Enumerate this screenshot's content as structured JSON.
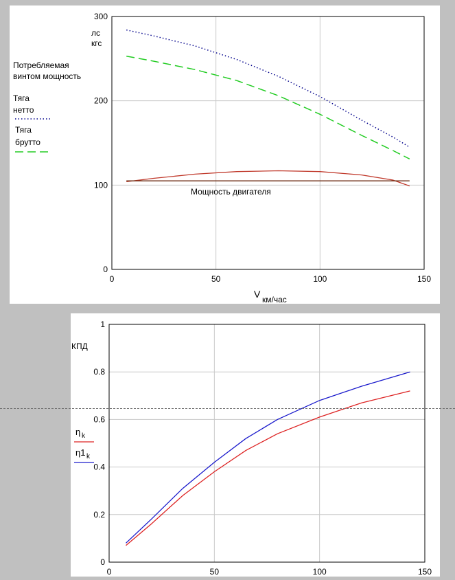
{
  "chart_data": [
    {
      "type": "line",
      "title": "",
      "xlabel": "V",
      "xlabel_sub": "км/час",
      "ylabel_lines": [
        "лс",
        "кгс"
      ],
      "xlim": [
        0,
        150
      ],
      "ylim": [
        0,
        300
      ],
      "xticks": [
        0,
        50,
        100,
        150
      ],
      "yticks": [
        0,
        100,
        200,
        300
      ],
      "grid": true,
      "annotations": [
        "Мощность двигателя"
      ],
      "series": [
        {
          "name": "Потребляемая винтом мощность",
          "legend_lines": [
            "Потребляемая",
            "винтом мощность"
          ],
          "style": "solid",
          "color": "#c0392b",
          "x": [
            7,
            20,
            40,
            60,
            80,
            100,
            120,
            135,
            143
          ],
          "y": [
            104,
            108,
            113,
            116,
            117,
            116,
            112,
            106,
            99
          ]
        },
        {
          "name": "Тяга нетто",
          "legend_lines": [
            "Тяга",
            "нетто"
          ],
          "style": "dotted",
          "color": "#00008b",
          "x": [
            7,
            20,
            40,
            60,
            80,
            100,
            120,
            135,
            143
          ],
          "y": [
            284,
            277,
            265,
            249,
            229,
            205,
            177,
            157,
            145
          ]
        },
        {
          "name": "Тяга брутто",
          "legend_lines": [
            "Тяга",
            "брутто"
          ],
          "style": "dashed",
          "color": "#22cc22",
          "x": [
            7,
            20,
            40,
            60,
            80,
            100,
            120,
            135,
            143
          ],
          "y": [
            253,
            247,
            237,
            224,
            206,
            184,
            159,
            141,
            131
          ]
        },
        {
          "name": "Мощность двигателя",
          "style": "solid",
          "color": "#6b2a10",
          "x": [
            7,
            143
          ],
          "y": [
            105,
            105
          ]
        }
      ]
    },
    {
      "type": "line",
      "title": "",
      "ylabel": "КПД",
      "xlabel": "",
      "xlim": [
        0,
        150
      ],
      "ylim": [
        0,
        1
      ],
      "xticks": [
        0,
        50,
        100,
        150
      ],
      "yticks": [
        "0",
        "0.2",
        "0.4",
        "0.6",
        "0.8",
        "1"
      ],
      "grid": true,
      "series": [
        {
          "name": "ηk",
          "legend_main": "η",
          "legend_sub": "k",
          "style": "solid",
          "color": "#dd2222",
          "x": [
            8,
            20,
            35,
            50,
            65,
            80,
            100,
            120,
            143
          ],
          "y": [
            0.07,
            0.16,
            0.28,
            0.38,
            0.47,
            0.54,
            0.61,
            0.67,
            0.72
          ]
        },
        {
          "name": "η1k",
          "legend_main": "η1",
          "legend_sub": "k",
          "style": "solid",
          "color": "#1a1acc",
          "x": [
            8,
            20,
            35,
            50,
            65,
            80,
            100,
            120,
            143
          ],
          "y": [
            0.08,
            0.18,
            0.31,
            0.42,
            0.52,
            0.6,
            0.68,
            0.74,
            0.8
          ]
        }
      ]
    }
  ]
}
